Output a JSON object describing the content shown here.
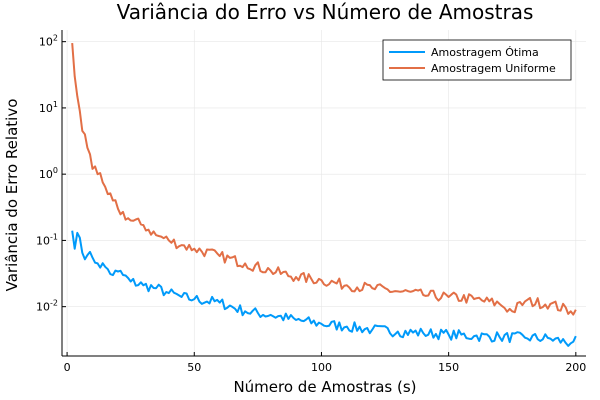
{
  "chart_data": {
    "type": "line",
    "title": "Variância do Erro vs Número de Amostras",
    "xlabel": "Número de Amostras (s)",
    "ylabel": "Variância do Erro Relativo",
    "xlim": [
      -2,
      204
    ],
    "ylim": [
      0.0018,
      150
    ],
    "yscale": "log",
    "grid": true,
    "legend": "top-right",
    "x_ticks": [
      0,
      50,
      100,
      150,
      200
    ],
    "x_tick_labels": [
      "0",
      "50",
      "100",
      "150",
      "200"
    ],
    "y_ticks": [
      0.01,
      0.1,
      1,
      10,
      100
    ],
    "y_tick_labels": [
      {
        "base": "10",
        "exp": "-2"
      },
      {
        "base": "10",
        "exp": "-1"
      },
      {
        "base": "10",
        "exp": "0"
      },
      {
        "base": "10",
        "exp": "1"
      },
      {
        "base": "10",
        "exp": "2"
      }
    ],
    "series": [
      {
        "name": "Amostragem Ótima",
        "color": "#009AFA",
        "x": [
          2,
          3,
          4,
          5,
          6,
          8,
          10,
          12,
          15,
          18,
          20,
          25,
          30,
          35,
          40,
          45,
          50,
          60,
          70,
          80,
          90,
          100,
          110,
          120,
          130,
          140,
          150,
          160,
          170,
          180,
          190,
          198,
          200
        ],
        "y": [
          0.14,
          0.075,
          0.13,
          0.11,
          0.065,
          0.06,
          0.055,
          0.045,
          0.04,
          0.03,
          0.034,
          0.024,
          0.021,
          0.019,
          0.016,
          0.014,
          0.013,
          0.0115,
          0.0085,
          0.0075,
          0.0063,
          0.0055,
          0.005,
          0.0045,
          0.0042,
          0.004,
          0.0038,
          0.0036,
          0.0035,
          0.0034,
          0.0033,
          0.0028,
          0.0036
        ]
      },
      {
        "name": "Amostragem Uniforme",
        "color": "#E26F46",
        "x": [
          2,
          3,
          4,
          5,
          6,
          7,
          8,
          9,
          10,
          12,
          14,
          16,
          18,
          20,
          25,
          30,
          35,
          40,
          45,
          50,
          60,
          70,
          80,
          90,
          100,
          110,
          120,
          130,
          140,
          150,
          160,
          170,
          175,
          180,
          190,
          198,
          200
        ],
        "y": [
          95,
          30,
          15,
          9,
          4.5,
          4,
          2.5,
          2,
          1.2,
          1,
          0.75,
          0.5,
          0.4,
          0.3,
          0.2,
          0.17,
          0.12,
          0.1,
          0.085,
          0.075,
          0.058,
          0.045,
          0.035,
          0.028,
          0.025,
          0.021,
          0.019,
          0.017,
          0.015,
          0.014,
          0.013,
          0.011,
          0.0085,
          0.012,
          0.011,
          0.0085,
          0.009
        ]
      }
    ]
  }
}
